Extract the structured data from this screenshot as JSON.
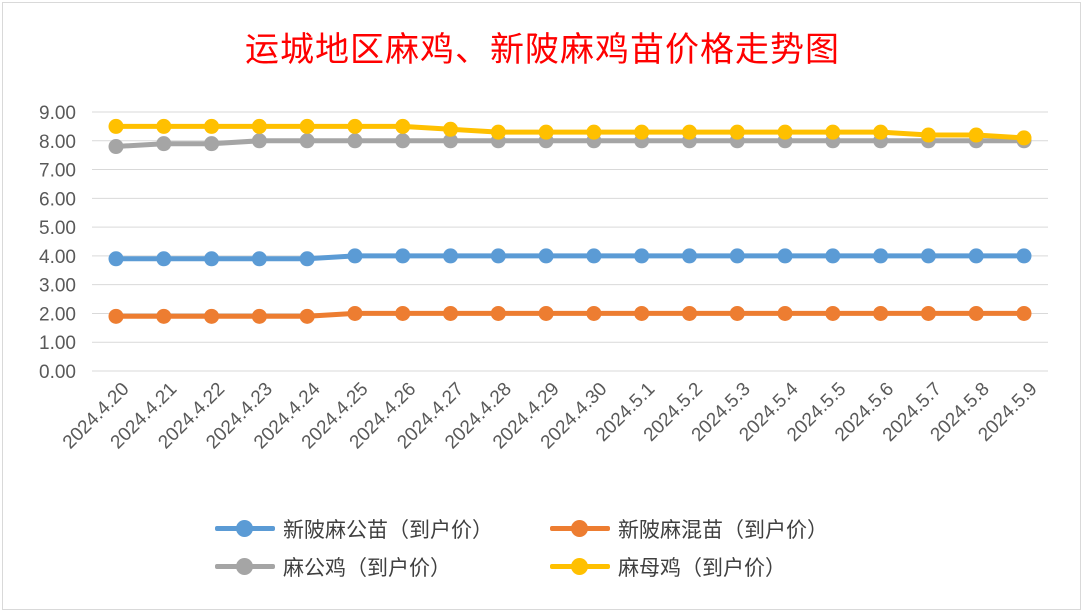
{
  "chart_data": {
    "type": "line",
    "title": "运城地区麻鸡、新陂麻鸡苗价格走势图",
    "xlabel": "",
    "ylabel": "",
    "ylim": [
      0,
      9
    ],
    "y_ticks": [
      "0.00",
      "1.00",
      "2.00",
      "3.00",
      "4.00",
      "5.00",
      "6.00",
      "7.00",
      "8.00",
      "9.00"
    ],
    "grid": true,
    "legend_position": "bottom",
    "categories": [
      "2024.4.20",
      "2024.4.21",
      "2024.4.22",
      "2024.4.23",
      "2024.4.24",
      "2024.4.25",
      "2024.4.26",
      "2024.4.27",
      "2024.4.28",
      "2024.4.29",
      "2024.4.30",
      "2024.5.1",
      "2024.5.2",
      "2024.5.3",
      "2024.5.4",
      "2024.5.5",
      "2024.5.6",
      "2024.5.7",
      "2024.5.8",
      "2024.5.9"
    ],
    "series": [
      {
        "name": "新陂麻公苗（到户价）",
        "color": "#5b9bd5",
        "values": [
          3.9,
          3.9,
          3.9,
          3.9,
          3.9,
          4.0,
          4.0,
          4.0,
          4.0,
          4.0,
          4.0,
          4.0,
          4.0,
          4.0,
          4.0,
          4.0,
          4.0,
          4.0,
          4.0,
          4.0
        ]
      },
      {
        "name": "新陂麻混苗（到户价）",
        "color": "#ed7d31",
        "values": [
          1.9,
          1.9,
          1.9,
          1.9,
          1.9,
          2.0,
          2.0,
          2.0,
          2.0,
          2.0,
          2.0,
          2.0,
          2.0,
          2.0,
          2.0,
          2.0,
          2.0,
          2.0,
          2.0,
          2.0
        ]
      },
      {
        "name": "麻公鸡（到户价）",
        "color": "#a5a5a5",
        "values": [
          7.8,
          7.9,
          7.9,
          8.0,
          8.0,
          8.0,
          8.0,
          8.0,
          8.0,
          8.0,
          8.0,
          8.0,
          8.0,
          8.0,
          8.0,
          8.0,
          8.0,
          8.0,
          8.0,
          8.0
        ]
      },
      {
        "name": "麻母鸡（到户价）",
        "color": "#ffc000",
        "values": [
          8.5,
          8.5,
          8.5,
          8.5,
          8.5,
          8.5,
          8.5,
          8.4,
          8.3,
          8.3,
          8.3,
          8.3,
          8.3,
          8.3,
          8.3,
          8.3,
          8.3,
          8.2,
          8.2,
          8.1
        ]
      }
    ]
  },
  "legend_order": [
    0,
    1,
    2,
    3
  ]
}
